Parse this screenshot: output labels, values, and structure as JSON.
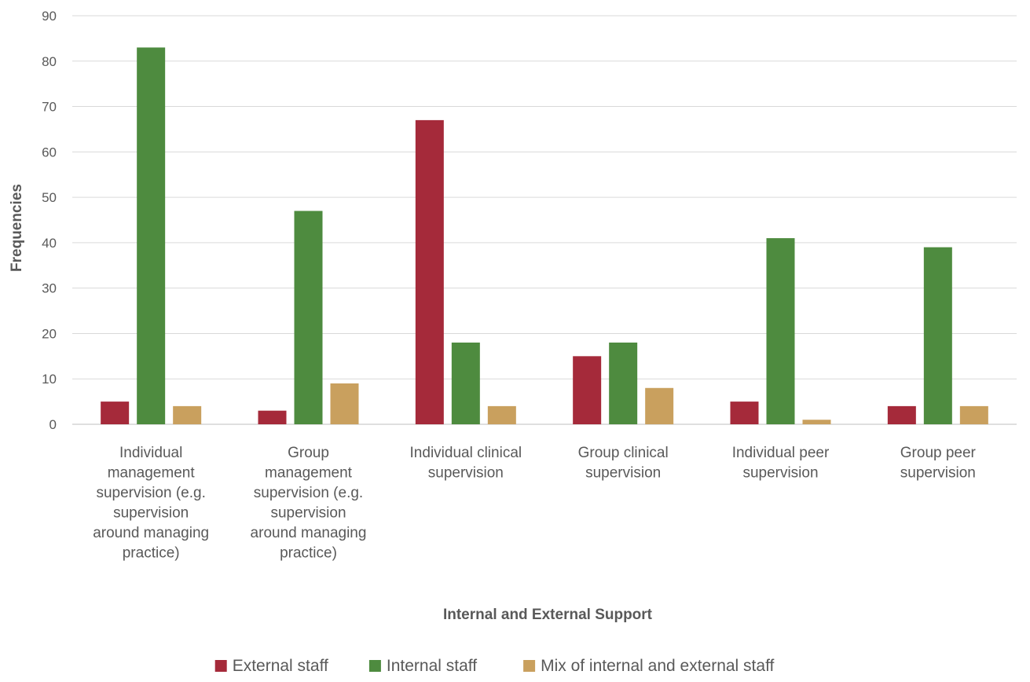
{
  "chart_data": {
    "type": "bar",
    "title": "",
    "xlabel": "Internal and External Support",
    "ylabel": "Frequencies",
    "ylim": [
      0,
      90
    ],
    "yticks": [
      0,
      10,
      20,
      30,
      40,
      50,
      60,
      70,
      80,
      90
    ],
    "grid": true,
    "legend_position": "bottom",
    "categories": [
      "Individual management supervision (e.g. supervision around managing practice)",
      "Group management supervision (e.g. supervision around managing practice)",
      "Individual clinical supervision",
      "Group clinical supervision",
      "Individual peer supervision",
      "Group peer supervision"
    ],
    "category_lines": [
      [
        "Individual",
        "management",
        "supervision (e.g.",
        "supervision",
        "around managing",
        "practice)"
      ],
      [
        "Group",
        "management",
        "supervision (e.g.",
        "supervision",
        "around managing",
        "practice)"
      ],
      [
        "Individual clinical",
        "supervision"
      ],
      [
        "Group clinical",
        "supervision"
      ],
      [
        "Individual peer",
        "supervision"
      ],
      [
        "Group peer",
        "supervision"
      ]
    ],
    "series": [
      {
        "name": "External staff",
        "color": "#A52A3A",
        "values": [
          5,
          3,
          67,
          15,
          5,
          4
        ]
      },
      {
        "name": "Internal staff",
        "color": "#4E8B3F",
        "values": [
          83,
          47,
          18,
          18,
          41,
          39
        ]
      },
      {
        "name": "Mix of internal and external staff",
        "color": "#C9A05E",
        "values": [
          4,
          9,
          4,
          8,
          1,
          4
        ]
      }
    ]
  }
}
